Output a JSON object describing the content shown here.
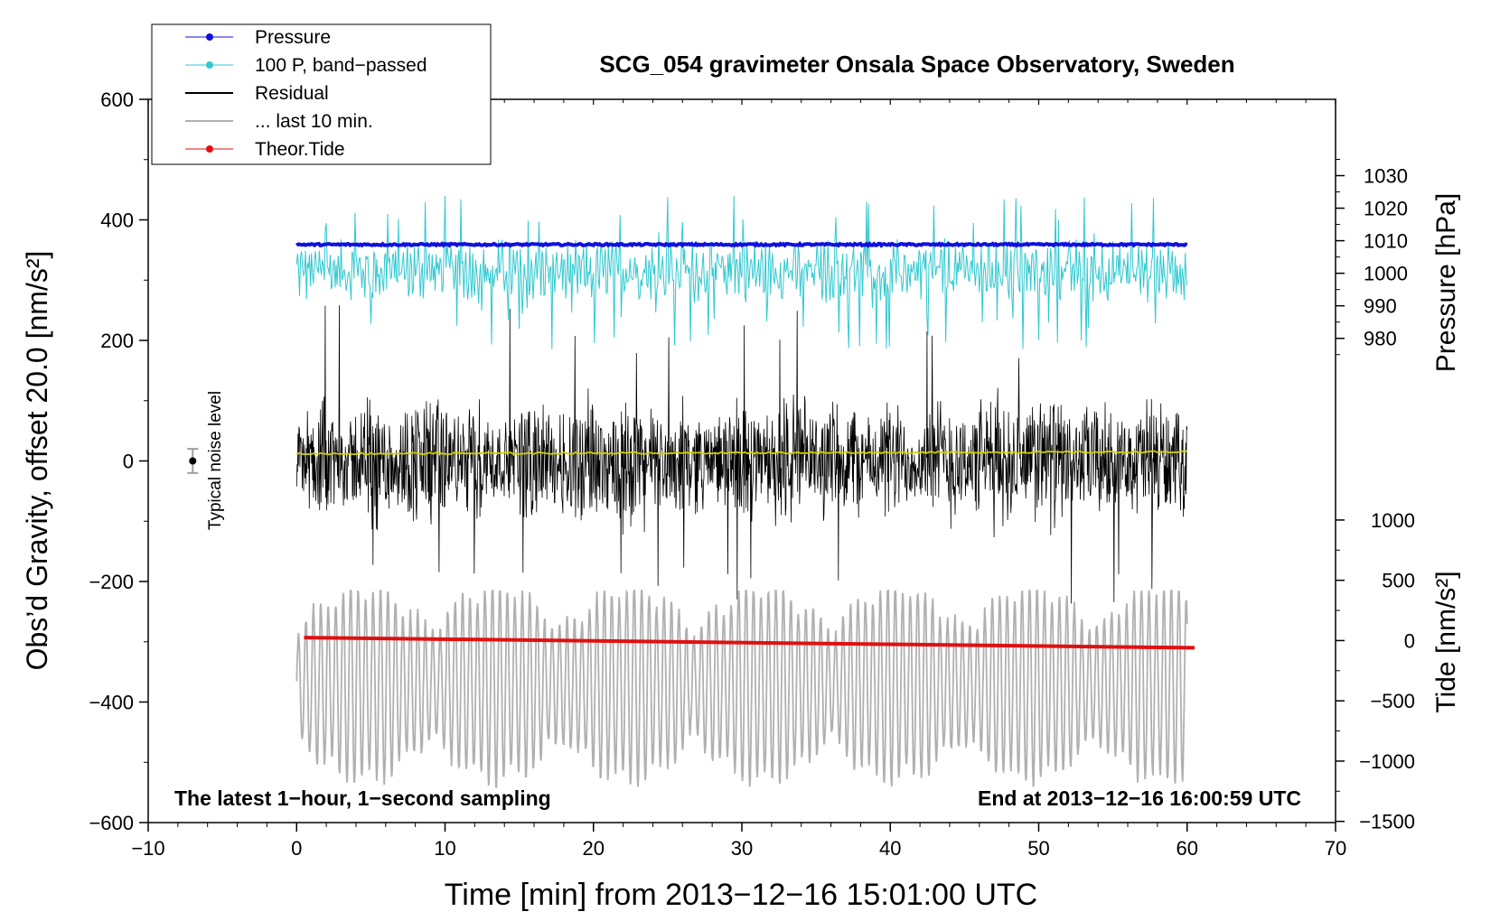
{
  "chart_data": {
    "type": "line",
    "title": "SCG_054 gravimeter Onsala Space Observatory, Sweden",
    "xlabel": "Time [min] from 2013−12−16 15:01:00 UTC",
    "ylabel_left": "Obs’d Gravity, offset 20.0 [nm/s²]",
    "ylabel_pressure": "Pressure [hPa]",
    "ylabel_tide": "Tide [nm/s²]",
    "xlim": [
      -10,
      70
    ],
    "ylim": [
      -600,
      600
    ],
    "x_ticks": [
      {
        "value": -10,
        "label": "−10"
      },
      {
        "value": 0,
        "label": "0"
      },
      {
        "value": 10,
        "label": "10"
      },
      {
        "value": 20,
        "label": "20"
      },
      {
        "value": 30,
        "label": "30"
      },
      {
        "value": 40,
        "label": "40"
      },
      {
        "value": 50,
        "label": "50"
      },
      {
        "value": 60,
        "label": "60"
      },
      {
        "value": 70,
        "label": "70"
      }
    ],
    "y_ticks": [
      {
        "value": 600,
        "label": "600"
      },
      {
        "value": 400,
        "label": "400"
      },
      {
        "value": 200,
        "label": "200"
      },
      {
        "value": 0,
        "label": "0"
      },
      {
        "value": -200,
        "label": "−200"
      },
      {
        "value": -400,
        "label": "−400"
      },
      {
        "value": -600,
        "label": "−600"
      }
    ],
    "pressure_axis": {
      "gravity_equiv": {
        "p0": 1009,
        "g0": 360,
        "nm_per_hpa": 5.4
      },
      "ticks": [
        {
          "value": 980,
          "label": "980"
        },
        {
          "value": 990,
          "label": "990"
        },
        {
          "value": 1000,
          "label": "1000"
        },
        {
          "value": 1010,
          "label": "1010"
        },
        {
          "value": 1020,
          "label": "1020"
        },
        {
          "value": 1030,
          "label": "1030"
        }
      ]
    },
    "tide_axis": {
      "gravity_equiv": {
        "t0": 0,
        "g0": -298,
        "nm_per_unit": 0.2
      },
      "ticks": [
        {
          "value": 1000,
          "label": "1000"
        },
        {
          "value": 500,
          "label": "500"
        },
        {
          "value": 0,
          "label": "0"
        },
        {
          "value": -500,
          "label": "−500"
        },
        {
          "value": -1000,
          "label": "−1000"
        },
        {
          "value": -1500,
          "label": "−1500"
        }
      ]
    },
    "legend": {
      "position": "top-left",
      "entries": [
        {
          "label": "Pressure",
          "color": "#1010e0",
          "marker": true
        },
        {
          "label": "100 P, band−passed",
          "color": "#30c8d0",
          "marker": true
        },
        {
          "label": "Residual",
          "color": "#000000",
          "marker": false
        },
        {
          "label": "... last 10 min.",
          "color": "#b0b0b0",
          "marker": false
        },
        {
          "label": "Theor.Tide",
          "color": "#e01010",
          "marker": true
        }
      ]
    },
    "series": [
      {
        "name": "Pressure",
        "color": "#1010e0",
        "x_range": [
          0,
          60
        ],
        "y_level": 359,
        "y_spread": 3
      },
      {
        "name": "100 P, band-passed",
        "color": "#30c8d0",
        "x_range": [
          0,
          60
        ],
        "y_center": 315,
        "y_range": [
          160,
          440
        ]
      },
      {
        "name": "Residual",
        "color": "#000000",
        "x_range": [
          0,
          60
        ],
        "y_center": 0,
        "y_range": [
          -260,
          275
        ]
      },
      {
        "name": "Residual trend",
        "color": "#d0d000",
        "x_range": [
          0,
          60
        ],
        "y_start": 12,
        "y_end": 15
      },
      {
        "name": "... last 10 min.",
        "color": "#b0b0b0",
        "x_range": [
          0,
          60
        ],
        "y_center": -370,
        "y_range": [
          -555,
          -215
        ]
      },
      {
        "name": "Theor.Tide",
        "color": "#e01010",
        "x_range": [
          0.5,
          60.5
        ],
        "y_start": -293,
        "y_end": -310
      }
    ],
    "noise_marker": {
      "x": -7,
      "y": 0,
      "error": 20,
      "label": "Typical noise level"
    },
    "annotations": {
      "bottom_left": "The latest 1−hour, 1−second sampling",
      "bottom_right": "End at 2013−12−16 16:00:59 UTC"
    }
  }
}
